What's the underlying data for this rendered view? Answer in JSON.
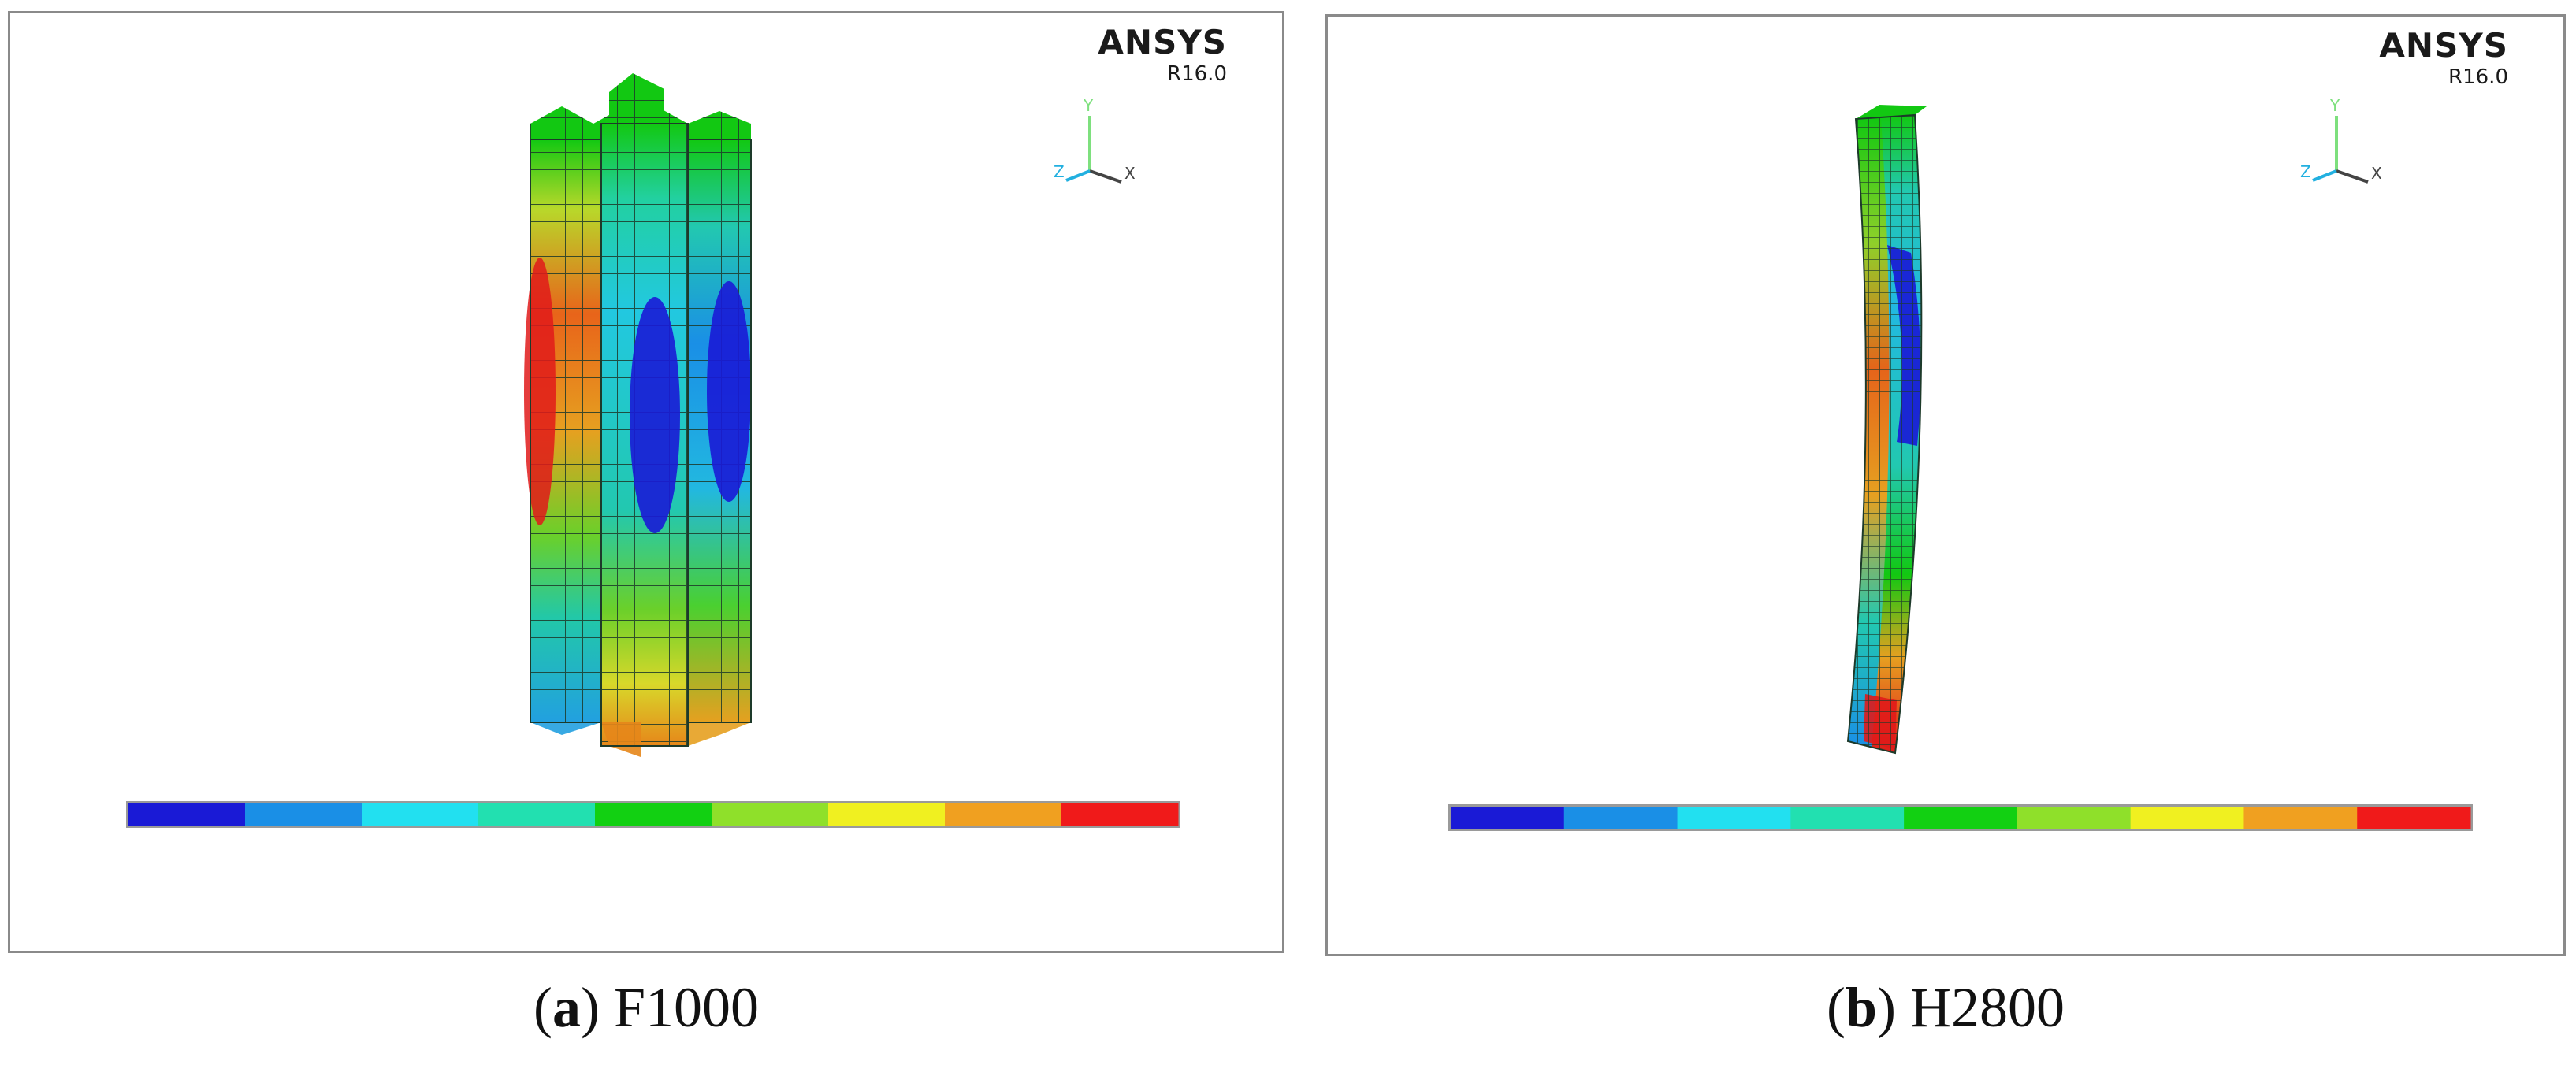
{
  "panels": [
    {
      "id": "a",
      "brand": "ANSYS",
      "version": "R16.0",
      "axis_labels": {
        "x": "X",
        "y": "Y",
        "z": "Z"
      },
      "caption": {
        "open": "(",
        "letter": "a",
        "close": ") ",
        "label": "F1000"
      }
    },
    {
      "id": "b",
      "brand": "ANSYS",
      "version": "R16.0",
      "axis_labels": {
        "x": "X",
        "y": "Y",
        "z": "Z"
      },
      "caption": {
        "open": "(",
        "letter": "b",
        "close": ") ",
        "label": "H2800"
      }
    }
  ],
  "colors": {
    "legend": [
      "#1a1ad6",
      "#1a8fe6",
      "#22e0f0",
      "#22e0b0",
      "#12d012",
      "#8fe02a",
      "#f0f020",
      "#f0a020",
      "#f01a1a"
    ],
    "axis_y": "#7ee07e",
    "axis_x": "#444444",
    "axis_z": "#22b0e0",
    "mesh_line": "#1d3a2a"
  }
}
